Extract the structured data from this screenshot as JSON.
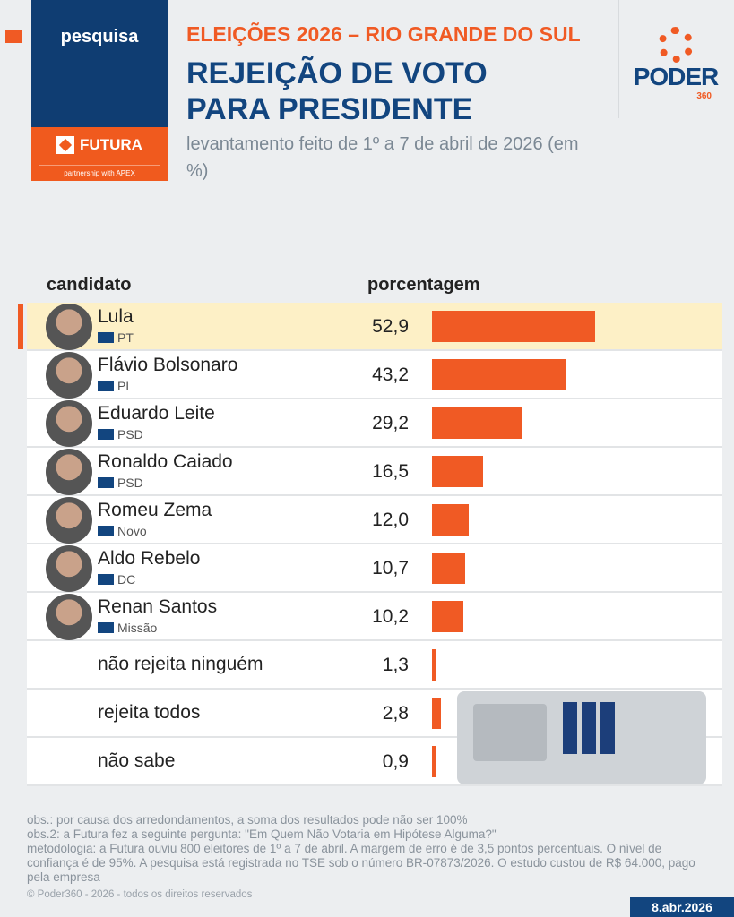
{
  "header": {
    "badge": "pesquisa",
    "partner": "FUTURA",
    "partnership": "partnership with APEX",
    "kicker": "ELEIÇÕES 2026 – RIO GRANDE DO SUL",
    "title": "REJEIÇÃO DE VOTO PARA PRESIDENTE",
    "subtitle": "levantamento feito de 1º a 7 de abril de 2026 (em %)",
    "logo": "PODER",
    "logo_num": "360"
  },
  "colors": {
    "accent": "#f05a24",
    "navy": "#12457f",
    "highlight": "#fdf0c6"
  },
  "chart_data": {
    "type": "bar",
    "orientation": "horizontal",
    "xlabel": "porcentagem",
    "ylabel": "candidato",
    "categories": [
      "Lula",
      "Flávio Bolsonaro",
      "Eduardo Leite",
      "Ronaldo Caiado",
      "Romeu Zema",
      "Aldo Rebelo",
      "Renan Santos",
      "não rejeita ninguém",
      "rejeita todos",
      "não sabe"
    ],
    "parties": [
      "PT",
      "PL",
      "PSD",
      "PSD",
      "Novo",
      "DC",
      "Missão",
      "",
      "",
      ""
    ],
    "values": [
      52.9,
      43.2,
      29.2,
      16.5,
      12.0,
      10.7,
      10.2,
      1.3,
      2.8,
      0.9
    ],
    "labels": [
      "52,9",
      "43,2",
      "29,2",
      "16,5",
      "12,0",
      "10,7",
      "10,2",
      "1,3",
      "2,8",
      "0,9"
    ],
    "highlighted": "Lula"
  },
  "footer": {
    "obs": [
      "obs.: por causa dos arredondamentos, a soma dos resultados pode não ser 100%",
      "obs.2: a Futura fez a seguinte pergunta: \"Em Quem Não Votaria em Hipótese Alguma?\"",
      "metodologia: a Futura ouviu 800 eleitores de 1º a 7 de abril. A margem de erro é de 3,5 pontos percentuais. O nível de confiança é de 95%. A pesquisa está registrada no TSE sob o número BR-07873/2026. O estudo custou de R$ 64.000, pago pela empresa"
    ],
    "copyright": "© Poder360 - 2026 - todos os direitos reservados",
    "date": "8.abr.2026"
  }
}
